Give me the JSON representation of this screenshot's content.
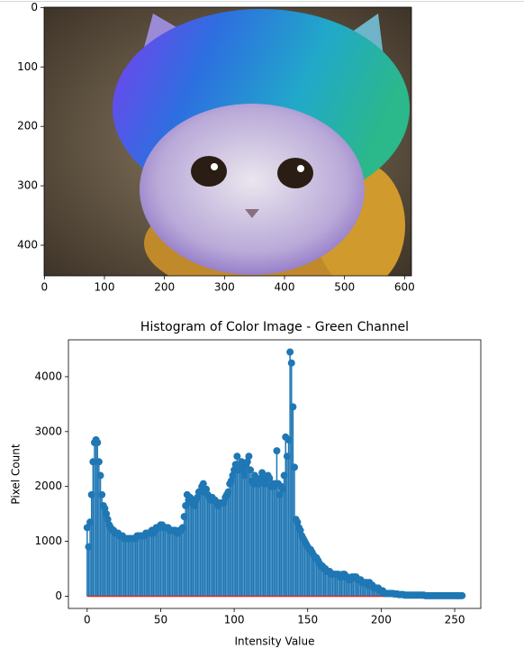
{
  "chart_data": [
    {
      "type": "image",
      "xlim": [
        -0.5,
        611.5
      ],
      "ylim": [
        451.5,
        -0.5
      ],
      "xticks": [
        0,
        100,
        200,
        300,
        400,
        500,
        600
      ],
      "yticks": [
        0,
        100,
        200,
        300,
        400
      ]
    },
    {
      "type": "stem",
      "title": "Histogram of Color Image - Green Channel",
      "xlabel": "Intensity Value",
      "ylabel": "Pixel Count",
      "color": "#1f77b4",
      "baseline_color": "#d62728",
      "xlim": [
        -12.75,
        267.75
      ],
      "ylim": [
        -222.5,
        4672.5
      ],
      "xticks": [
        0,
        50,
        100,
        150,
        200,
        250
      ],
      "yticks": [
        0,
        1000,
        2000,
        3000,
        4000
      ],
      "x": [
        0,
        1,
        2,
        3,
        4,
        5,
        6,
        7,
        8,
        9,
        10,
        11,
        12,
        13,
        14,
        15,
        16,
        17,
        18,
        19,
        20,
        21,
        22,
        23,
        24,
        25,
        26,
        27,
        28,
        29,
        30,
        31,
        32,
        33,
        34,
        35,
        36,
        37,
        38,
        39,
        40,
        41,
        42,
        43,
        44,
        45,
        46,
        47,
        48,
        49,
        50,
        51,
        52,
        53,
        54,
        55,
        56,
        57,
        58,
        59,
        60,
        61,
        62,
        63,
        64,
        65,
        66,
        67,
        68,
        69,
        70,
        71,
        72,
        73,
        74,
        75,
        76,
        77,
        78,
        79,
        80,
        81,
        82,
        83,
        84,
        85,
        86,
        87,
        88,
        89,
        90,
        91,
        92,
        93,
        94,
        95,
        96,
        97,
        98,
        99,
        100,
        101,
        102,
        103,
        104,
        105,
        106,
        107,
        108,
        109,
        110,
        111,
        112,
        113,
        114,
        115,
        116,
        117,
        118,
        119,
        120,
        121,
        122,
        123,
        124,
        125,
        126,
        127,
        128,
        129,
        130,
        131,
        132,
        133,
        134,
        135,
        136,
        137,
        138,
        139,
        140,
        141,
        142,
        143,
        144,
        145,
        146,
        147,
        148,
        149,
        150,
        151,
        152,
        153,
        154,
        155,
        156,
        157,
        158,
        159,
        160,
        161,
        162,
        163,
        164,
        165,
        166,
        167,
        168,
        169,
        170,
        171,
        172,
        173,
        174,
        175,
        176,
        177,
        178,
        179,
        180,
        181,
        182,
        183,
        184,
        185,
        186,
        187,
        188,
        189,
        190,
        191,
        192,
        193,
        194,
        195,
        196,
        197,
        198,
        199,
        200,
        201,
        202,
        203,
        204,
        205,
        206,
        207,
        208,
        209,
        210,
        211,
        212,
        213,
        214,
        215,
        216,
        217,
        218,
        219,
        220,
        221,
        222,
        223,
        224,
        225,
        226,
        227,
        228,
        229,
        230,
        231,
        232,
        233,
        234,
        235,
        236,
        237,
        238,
        239,
        240,
        241,
        242,
        243,
        244,
        245,
        246,
        247,
        248,
        249,
        250,
        251,
        252,
        253,
        254,
        255
      ],
      "values": [
        1250,
        900,
        1350,
        1850,
        2450,
        2800,
        2850,
        2800,
        2450,
        2200,
        1850,
        1650,
        1600,
        1500,
        1400,
        1300,
        1250,
        1200,
        1200,
        1150,
        1150,
        1150,
        1100,
        1100,
        1100,
        1050,
        1050,
        1050,
        1050,
        1050,
        1050,
        1050,
        1050,
        1050,
        1100,
        1100,
        1100,
        1100,
        1100,
        1100,
        1150,
        1150,
        1150,
        1150,
        1200,
        1150,
        1200,
        1250,
        1250,
        1250,
        1300,
        1300,
        1250,
        1250,
        1250,
        1250,
        1200,
        1200,
        1200,
        1200,
        1200,
        1150,
        1150,
        1200,
        1200,
        1250,
        1450,
        1650,
        1850,
        1750,
        1800,
        1700,
        1750,
        1650,
        1750,
        1800,
        1900,
        1900,
        2000,
        2050,
        1900,
        1950,
        1850,
        1800,
        1750,
        1800,
        1750,
        1750,
        1700,
        1650,
        1700,
        1700,
        1700,
        1700,
        1800,
        1850,
        1900,
        2050,
        2100,
        2200,
        2300,
        2400,
        2550,
        2300,
        2350,
        2450,
        2300,
        2200,
        2400,
        2450,
        2550,
        2300,
        2100,
        2050,
        2200,
        2050,
        2100,
        2050,
        2150,
        2250,
        2200,
        2050,
        2150,
        2200,
        2150,
        2000,
        2050,
        2000,
        2050,
        2650,
        2050,
        1850,
        2000,
        1950,
        2200,
        2900,
        2550,
        2850,
        4450,
        4250,
        3450,
        2350,
        1400,
        1350,
        1250,
        1200,
        1100,
        1050,
        1000,
        950,
        900,
        850,
        850,
        800,
        750,
        700,
        700,
        650,
        600,
        550,
        550,
        500,
        500,
        450,
        450,
        450,
        400,
        400,
        400,
        400,
        400,
        400,
        350,
        350,
        400,
        400,
        350,
        350,
        300,
        300,
        350,
        350,
        350,
        350,
        300,
        300,
        300,
        250,
        250,
        250,
        250,
        200,
        250,
        200,
        200,
        150,
        150,
        150,
        150,
        100,
        100,
        100,
        50,
        50,
        50,
        50,
        50,
        50,
        50,
        40,
        40,
        40,
        30,
        30,
        30,
        30,
        20,
        20,
        20,
        20,
        20,
        20,
        20,
        20,
        20,
        20,
        20,
        20,
        20,
        20,
        10,
        10,
        10,
        10,
        10,
        10,
        10,
        10,
        10,
        10,
        10,
        10,
        10,
        10,
        10,
        10,
        10,
        10,
        10,
        10,
        10,
        10,
        10,
        10,
        10,
        10
      ]
    }
  ]
}
